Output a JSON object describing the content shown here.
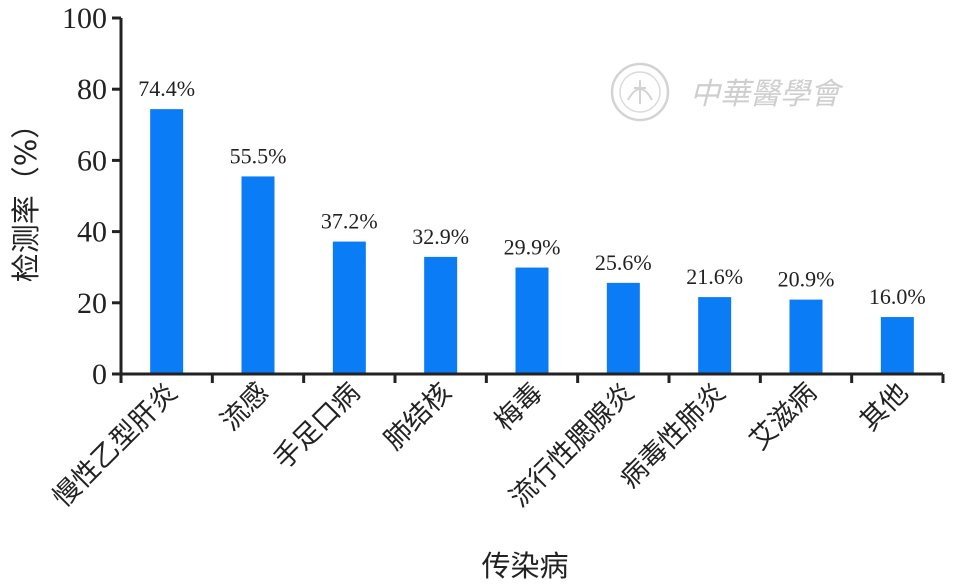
{
  "chart_data": {
    "type": "bar",
    "categories": [
      "慢性乙型肝炎",
      "流感",
      "手足口病",
      "肺结核",
      "梅毒",
      "流行性腮腺炎",
      "病毒性肺炎",
      "艾滋病",
      "其他"
    ],
    "values": [
      74.4,
      55.5,
      37.2,
      32.9,
      29.9,
      25.6,
      21.6,
      20.9,
      16.0
    ],
    "data_labels": [
      "74.4%",
      "55.5%",
      "37.2%",
      "32.9%",
      "29.9%",
      "25.6%",
      "21.6%",
      "20.9%",
      "16.0%"
    ],
    "xlabel": "传染病",
    "ylabel": "检测率（%）",
    "ylim": [
      0,
      100
    ],
    "yticks": [
      "0",
      "20",
      "40",
      "60",
      "80",
      "100"
    ],
    "grid": false,
    "bar_color": "#0a7cf5",
    "axis_color": "#222222"
  },
  "watermark": {
    "text": "中華醫學會",
    "color": "#c9c9c9"
  }
}
